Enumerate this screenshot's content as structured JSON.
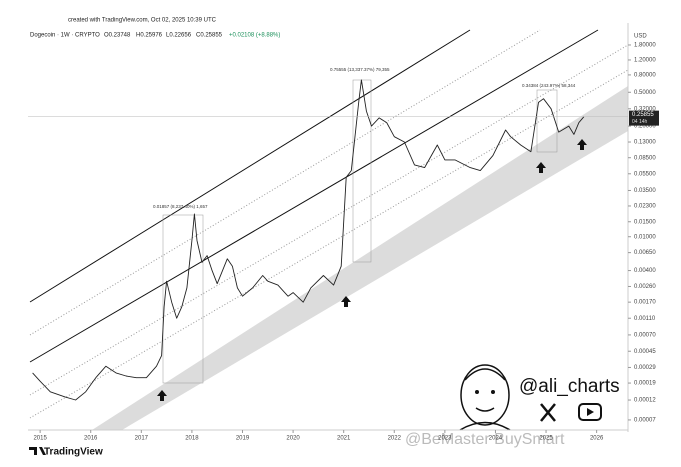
{
  "header": {
    "created": "created with TradingView.com, Oct 02, 2025 10:39 UTC",
    "symbol": "Dogecoin · 1W · CRYPTO",
    "open": "O0.23748",
    "high": "H0.25976",
    "low": "L0.22656",
    "close": "C0.25855",
    "change": "+0.02108 (+8.88%)"
  },
  "chart_data": {
    "type": "line",
    "color": "#222222",
    "log_scale": true,
    "y_axis_label": "USD",
    "x": [
      2014.85,
      2015.0,
      2015.2,
      2015.5,
      2015.7,
      2015.9,
      2016.1,
      2016.3,
      2016.5,
      2016.7,
      2016.9,
      2017.1,
      2017.3,
      2017.4,
      2017.45,
      2017.5,
      2017.6,
      2017.7,
      2017.8,
      2017.9,
      2018.0,
      2018.05,
      2018.1,
      2018.2,
      2018.3,
      2018.4,
      2018.5,
      2018.7,
      2018.8,
      2018.9,
      2019.0,
      2019.2,
      2019.4,
      2019.5,
      2019.7,
      2019.9,
      2020.0,
      2020.2,
      2020.35,
      2020.6,
      2020.8,
      2020.95,
      2021.05,
      2021.15,
      2021.3,
      2021.35,
      2021.45,
      2021.55,
      2021.7,
      2021.85,
      2022.0,
      2022.2,
      2022.4,
      2022.6,
      2022.85,
      2023.0,
      2023.2,
      2023.5,
      2023.7,
      2023.95,
      2024.2,
      2024.3,
      2024.5,
      2024.7,
      2024.85,
      2024.95,
      2025.1,
      2025.25,
      2025.45,
      2025.55,
      2025.65,
      2025.75
    ],
    "values": [
      0.00025,
      0.0002,
      0.00015,
      0.00013,
      0.00012,
      0.00015,
      0.00022,
      0.0003,
      0.00025,
      0.00023,
      0.00022,
      0.00022,
      0.0003,
      0.0004,
      0.0015,
      0.003,
      0.0017,
      0.0011,
      0.0015,
      0.0025,
      0.009,
      0.0185,
      0.009,
      0.005,
      0.006,
      0.004,
      0.0028,
      0.0055,
      0.0045,
      0.0025,
      0.002,
      0.0025,
      0.0035,
      0.003,
      0.0027,
      0.002,
      0.0022,
      0.0017,
      0.0025,
      0.0035,
      0.0027,
      0.0045,
      0.05,
      0.06,
      0.4,
      0.7,
      0.3,
      0.2,
      0.25,
      0.22,
      0.15,
      0.13,
      0.07,
      0.065,
      0.12,
      0.08,
      0.08,
      0.065,
      0.06,
      0.09,
      0.18,
      0.15,
      0.12,
      0.1,
      0.38,
      0.42,
      0.32,
      0.17,
      0.2,
      0.16,
      0.22,
      0.25855
    ],
    "xlim": [
      2014.76,
      2026.62
    ],
    "xticks": [
      2015,
      2016,
      2017,
      2018,
      2019,
      2020,
      2021,
      2022,
      2023,
      2024,
      2025,
      2026
    ],
    "ylim": [
      5.33e-05,
      2.49
    ],
    "yticks": [
      {
        "value": 1.8,
        "label": "1.80000"
      },
      {
        "value": 1.2,
        "label": "1.20000"
      },
      {
        "value": 0.8,
        "label": "0.80000"
      },
      {
        "value": 0.5,
        "label": "0.50000"
      },
      {
        "value": 0.32,
        "label": "0.32000"
      },
      {
        "value": 0.2,
        "label": "0.20000"
      },
      {
        "value": 0.13,
        "label": "0.13000"
      },
      {
        "value": 0.085,
        "label": "0.08500"
      },
      {
        "value": 0.055,
        "label": "0.05500"
      },
      {
        "value": 0.035,
        "label": "0.03500"
      },
      {
        "value": 0.023,
        "label": "0.02300"
      },
      {
        "value": 0.015,
        "label": "0.01500"
      },
      {
        "value": 0.01,
        "label": "0.01000"
      },
      {
        "value": 0.0065,
        "label": "0.00650"
      },
      {
        "value": 0.004,
        "label": "0.00400"
      },
      {
        "value": 0.0026,
        "label": "0.00260"
      },
      {
        "value": 0.0017,
        "label": "0.00170"
      },
      {
        "value": 0.0011,
        "label": "0.00110"
      },
      {
        "value": 0.0007,
        "label": "0.00070"
      },
      {
        "value": 0.00045,
        "label": "0.00045"
      },
      {
        "value": 0.00029,
        "label": "0.00029"
      },
      {
        "value": 0.00019,
        "label": "0.00019"
      },
      {
        "value": 0.00012,
        "label": "0.00012"
      },
      {
        "value": 7e-05,
        "label": "0.00007"
      }
    ],
    "last_price": 0.25855,
    "countdown": "04 14h",
    "annotations": [
      "0.01857 (8,237.40%) 1,657",
      "0.75555 (13,337.37%) 79,355",
      "0.34384 (243.97%) 58,344"
    ]
  },
  "author": "@ali_charts",
  "watermark": "@BeMaster BuySmart",
  "brand": "TradingView"
}
